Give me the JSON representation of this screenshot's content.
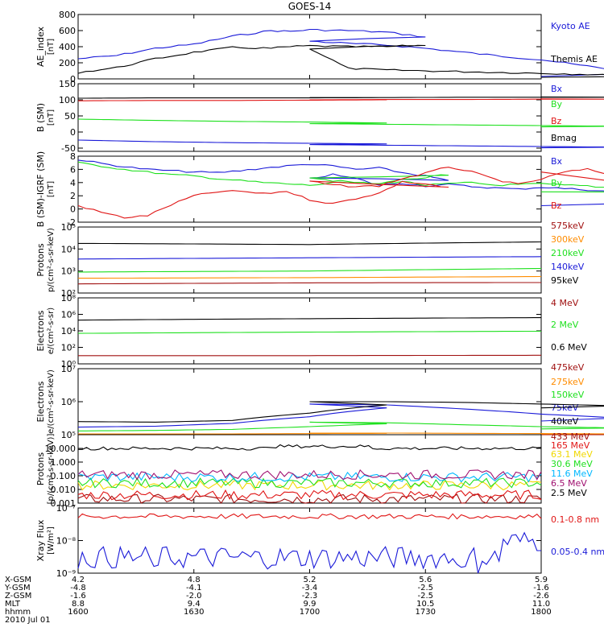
{
  "title": "GOES-14",
  "colors": {
    "black": "#000000",
    "blue": "#1a1ad8",
    "green": "#1ee01e",
    "red": "#e01515",
    "orange": "#ff8c00",
    "yellow": "#f0d800",
    "cyan": "#00b8ff",
    "maroon": "#a01010",
    "purple": "#a01070"
  },
  "chart_data": [
    {
      "type": "line",
      "ylabel": "AE_index",
      "yunit": "[nT]",
      "ylim": [
        0,
        800
      ],
      "yscale": "linear",
      "yticks": [
        "0",
        "200",
        "400",
        "600",
        "800"
      ],
      "ytick_values": [
        0,
        200,
        400,
        600,
        800
      ],
      "x": [
        1600,
        1610,
        1620,
        1630,
        1640,
        1650,
        1655,
        1660,
        1670,
        1680,
        1690,
        1700,
        1710,
        1720,
        1730,
        1740,
        1750,
        1760,
        1770,
        1780,
        1790,
        1800
      ],
      "series": [
        {
          "name": "Kyoto AE",
          "color": "blue",
          "values": [
            250,
            290,
            380,
            430,
            530,
            600,
            590,
            610,
            600,
            580,
            520,
            470,
            440,
            420,
            380,
            330,
            280,
            240,
            170,
            110,
            60,
            30
          ]
        },
        {
          "name": "Themis AE",
          "color": "black",
          "values": [
            80,
            140,
            250,
            330,
            390,
            380,
            400,
            410,
            400,
            400,
            420,
            380,
            130,
            110,
            100,
            90,
            80,
            70,
            60,
            40,
            30,
            20
          ]
        }
      ]
    },
    {
      "type": "line",
      "ylabel": "B (SM)",
      "yunit": "[nT]",
      "ylim": [
        -60,
        150
      ],
      "yscale": "linear",
      "yticks": [
        "-50",
        "0",
        "50",
        "100",
        "150"
      ],
      "ytick_values": [
        -50,
        0,
        50,
        100,
        150
      ],
      "x": [
        1600,
        1620,
        1640,
        1660,
        1680,
        1700,
        1720,
        1740,
        1760,
        1780,
        1800
      ],
      "series": [
        {
          "name": "Bx",
          "color": "blue",
          "values": [
            -25,
            -30,
            -33,
            -35,
            -37,
            -39,
            -41,
            -43,
            -45,
            -47,
            -49
          ]
        },
        {
          "name": "By",
          "color": "green",
          "values": [
            40,
            36,
            33,
            31,
            28,
            26,
            24,
            22,
            20,
            18,
            16
          ]
        },
        {
          "name": "Bz",
          "color": "red",
          "values": [
            97,
            98,
            98,
            99,
            100,
            100,
            101,
            101,
            102,
            102,
            103
          ]
        },
        {
          "name": "Bmag",
          "color": "black",
          "values": [
            105,
            106,
            106,
            106,
            107,
            107,
            107,
            108,
            108,
            108,
            109
          ]
        }
      ]
    },
    {
      "type": "line",
      "ylabel": "B (SM)-IGRF (SM)",
      "yunit": "[nT]",
      "ylim": [
        -2,
        8
      ],
      "yscale": "linear",
      "yticks": [
        "-2",
        "0",
        "2",
        "4",
        "6",
        "8"
      ],
      "ytick_values": [
        -2,
        0,
        2,
        4,
        6,
        8
      ],
      "x": [
        1600,
        1606,
        1612,
        1618,
        1624,
        1630,
        1636,
        1642,
        1648,
        1654,
        1660,
        1666,
        1672,
        1678,
        1684,
        1690,
        1696,
        1700,
        1706,
        1712,
        1718,
        1724,
        1730,
        1736,
        1742,
        1748,
        1754,
        1760,
        1766,
        1772,
        1778,
        1784,
        1790,
        1796,
        1800
      ],
      "series": [
        {
          "name": "Bx",
          "color": "blue",
          "values": [
            7.5,
            6.9,
            6.4,
            6.0,
            5.8,
            5.6,
            5.5,
            5.8,
            6.2,
            6.5,
            6.8,
            6.5,
            6.0,
            6.2,
            5.5,
            5.0,
            4.3,
            4.6,
            5.2,
            4.6,
            3.6,
            3.9,
            3.5,
            3.7,
            3.4,
            3.2,
            3.0,
            3.3,
            3.1,
            2.9,
            2.6,
            2.5,
            2.0,
            1.0,
            0.5
          ]
        },
        {
          "name": "By",
          "color": "green",
          "values": [
            7.0,
            6.5,
            6.0,
            5.6,
            5.2,
            5.0,
            4.6,
            4.3,
            4.0,
            3.8,
            3.6,
            3.9,
            4.0,
            3.7,
            4.5,
            4.8,
            5.2,
            4.8,
            4.3,
            4.0,
            3.8,
            4.2,
            3.6,
            3.8,
            4.0,
            3.6,
            3.7,
            3.8,
            3.6,
            3.5,
            3.2,
            3.0,
            2.8,
            2.5,
            2.6
          ]
        },
        {
          "name": "Bz",
          "color": "red",
          "values": [
            0.5,
            -0.5,
            -1.3,
            -1.0,
            0.6,
            2.0,
            2.6,
            2.7,
            2.3,
            2.7,
            1.4,
            0.8,
            1.6,
            2.4,
            4.1,
            3.8,
            3.2,
            4.2,
            3.6,
            3.4,
            3.5,
            4.6,
            5.4,
            6.4,
            5.6,
            4.5,
            3.7,
            4.5,
            5.6,
            6.0,
            5.2,
            3.6,
            2.6,
            3.0,
            5.6
          ]
        }
      ]
    },
    {
      "type": "line",
      "ylabel": "Protons",
      "yunit": "p/(cm²-s-sr-keV)",
      "ylim": [
        100,
        100000
      ],
      "yscale": "log",
      "yticks": [
        "10²",
        "10³",
        "10⁴",
        "10⁵"
      ],
      "ytick_values": [
        100,
        1000,
        10000,
        100000
      ],
      "x": [
        1600,
        1700,
        1800
      ],
      "series": [
        {
          "name": "575keV",
          "color": "maroon",
          "values": [
            260,
            290,
            300
          ]
        },
        {
          "name": "300keV",
          "color": "orange",
          "values": [
            470,
            500,
            560
          ]
        },
        {
          "name": "210keV",
          "color": "green",
          "values": [
            900,
            1000,
            1300
          ]
        },
        {
          "name": "140keV",
          "color": "blue",
          "values": [
            3500,
            4000,
            4500
          ]
        },
        {
          "name": "95keV",
          "color": "black",
          "values": [
            18000,
            16000,
            21000
          ]
        }
      ]
    },
    {
      "type": "line",
      "ylabel": "Electrons",
      "yunit": "e/(cm²-s-sr)",
      "ylim": [
        1,
        100000000
      ],
      "yscale": "log",
      "yticks": [
        "10⁰",
        "10²",
        "10⁴",
        "10⁶",
        "10⁸"
      ],
      "ytick_values": [
        1,
        100,
        10000,
        1000000,
        100000000
      ],
      "x": [
        1600,
        1700,
        1800
      ],
      "series": [
        {
          "name": "4 MeV",
          "color": "maroon",
          "values": [
            10,
            10,
            11
          ]
        },
        {
          "name": "2 MeV",
          "color": "green",
          "values": [
            5000,
            7000,
            9000
          ]
        },
        {
          "name": "0.6 MeV",
          "color": "black",
          "values": [
            200000,
            300000,
            400000
          ]
        }
      ]
    },
    {
      "type": "line",
      "ylabel": "Electrons",
      "yunit": "e/(cm²-s-sr-keV)",
      "ylim": [
        100000,
        10000000
      ],
      "yscale": "log",
      "yticks": [
        "10⁵",
        "10⁶",
        "10⁷"
      ],
      "ytick_values": [
        100000,
        1000000,
        10000000
      ],
      "x": [
        1600,
        1620,
        1640,
        1660,
        1680,
        1700,
        1720,
        1740,
        1760,
        1780,
        1800
      ],
      "series": [
        {
          "name": "475keV",
          "color": "maroon",
          "values": [
            100000,
            100000,
            100000,
            100000,
            100000,
            100000,
            100000,
            100000,
            100000,
            100000,
            100000
          ]
        },
        {
          "name": "275keV",
          "color": "orange",
          "values": [
            105000,
            105000,
            106000,
            108000,
            110000,
            112000,
            112000,
            110000,
            108000,
            106000,
            105000
          ]
        },
        {
          "name": "150keV",
          "color": "green",
          "values": [
            130000,
            135000,
            145000,
            175000,
            215000,
            240000,
            230000,
            200000,
            175000,
            160000,
            150000
          ]
        },
        {
          "name": "75keV",
          "color": "blue",
          "values": [
            170000,
            180000,
            220000,
            350000,
            650000,
            850000,
            800000,
            600000,
            420000,
            320000,
            260000
          ]
        },
        {
          "name": "40keV",
          "color": "black",
          "values": [
            250000,
            240000,
            270000,
            450000,
            800000,
            1000000,
            1000000,
            950000,
            850000,
            750000,
            650000
          ]
        }
      ]
    },
    {
      "type": "line",
      "ylabel": "Protons",
      "yunit": "[p/(cm²-s-sr-keV)]",
      "ylim": [
        0.001,
        100
      ],
      "yscale": "log",
      "yticks": [
        "0.001",
        "0.010",
        "0.100",
        "1.000",
        "10.000"
      ],
      "ytick_values": [
        0.001,
        0.01,
        0.1,
        1,
        10
      ],
      "series": [
        {
          "name": "433 MeV",
          "color": "maroon",
          "base": 0.002
        },
        {
          "name": "165 MeV",
          "color": "red",
          "base": 0.004
        },
        {
          "name": "63.1 MeV",
          "color": "yellow",
          "base": 0.02
        },
        {
          "name": "30.6 MeV",
          "color": "green",
          "base": 0.03
        },
        {
          "name": "11.6 MeV",
          "color": "cyan",
          "base": 0.08
        },
        {
          "name": "6.5 MeV",
          "color": "purple",
          "base": 0.12
        },
        {
          "name": "2.5 MeV",
          "color": "black",
          "base": 10
        }
      ]
    },
    {
      "type": "line",
      "ylabel": "Xray Flux",
      "yunit": "[W/m²]",
      "ylim": [
        1e-09,
        1e-07
      ],
      "yscale": "log",
      "yticks": [
        "10⁻⁹",
        "10⁻⁸",
        "10⁻⁷"
      ],
      "ytick_values": [
        1e-09,
        1e-08,
        1e-07
      ],
      "series": [
        {
          "name": "0.1-0.8 nm",
          "color": "red",
          "base": 5.5e-08
        },
        {
          "name": "0.05-0.4 nm",
          "color": "blue",
          "base": 3e-09
        }
      ]
    }
  ],
  "xaxis": {
    "ticks": [
      1600,
      1630,
      1700,
      1730,
      1800
    ],
    "rows": [
      {
        "label": "X-GSM",
        "values": [
          "4.2",
          "4.8",
          "5.2",
          "5.6",
          "5.9"
        ]
      },
      {
        "label": "Y-GSM",
        "values": [
          "-4.8",
          "-4.1",
          "-3.4",
          "-2.5",
          "-1.6"
        ]
      },
      {
        "label": "Z-GSM",
        "values": [
          "-1.6",
          "-2.0",
          "-2.3",
          "-2.5",
          "-2.6"
        ]
      },
      {
        "label": "MLT",
        "values": [
          "8.8",
          "9.4",
          "9.9",
          "10.5",
          "11.0"
        ]
      },
      {
        "label": "hhmm",
        "values": [
          "1600",
          "1630",
          "1700",
          "1730",
          "1800"
        ]
      }
    ],
    "date": "2010 Jul 01"
  }
}
